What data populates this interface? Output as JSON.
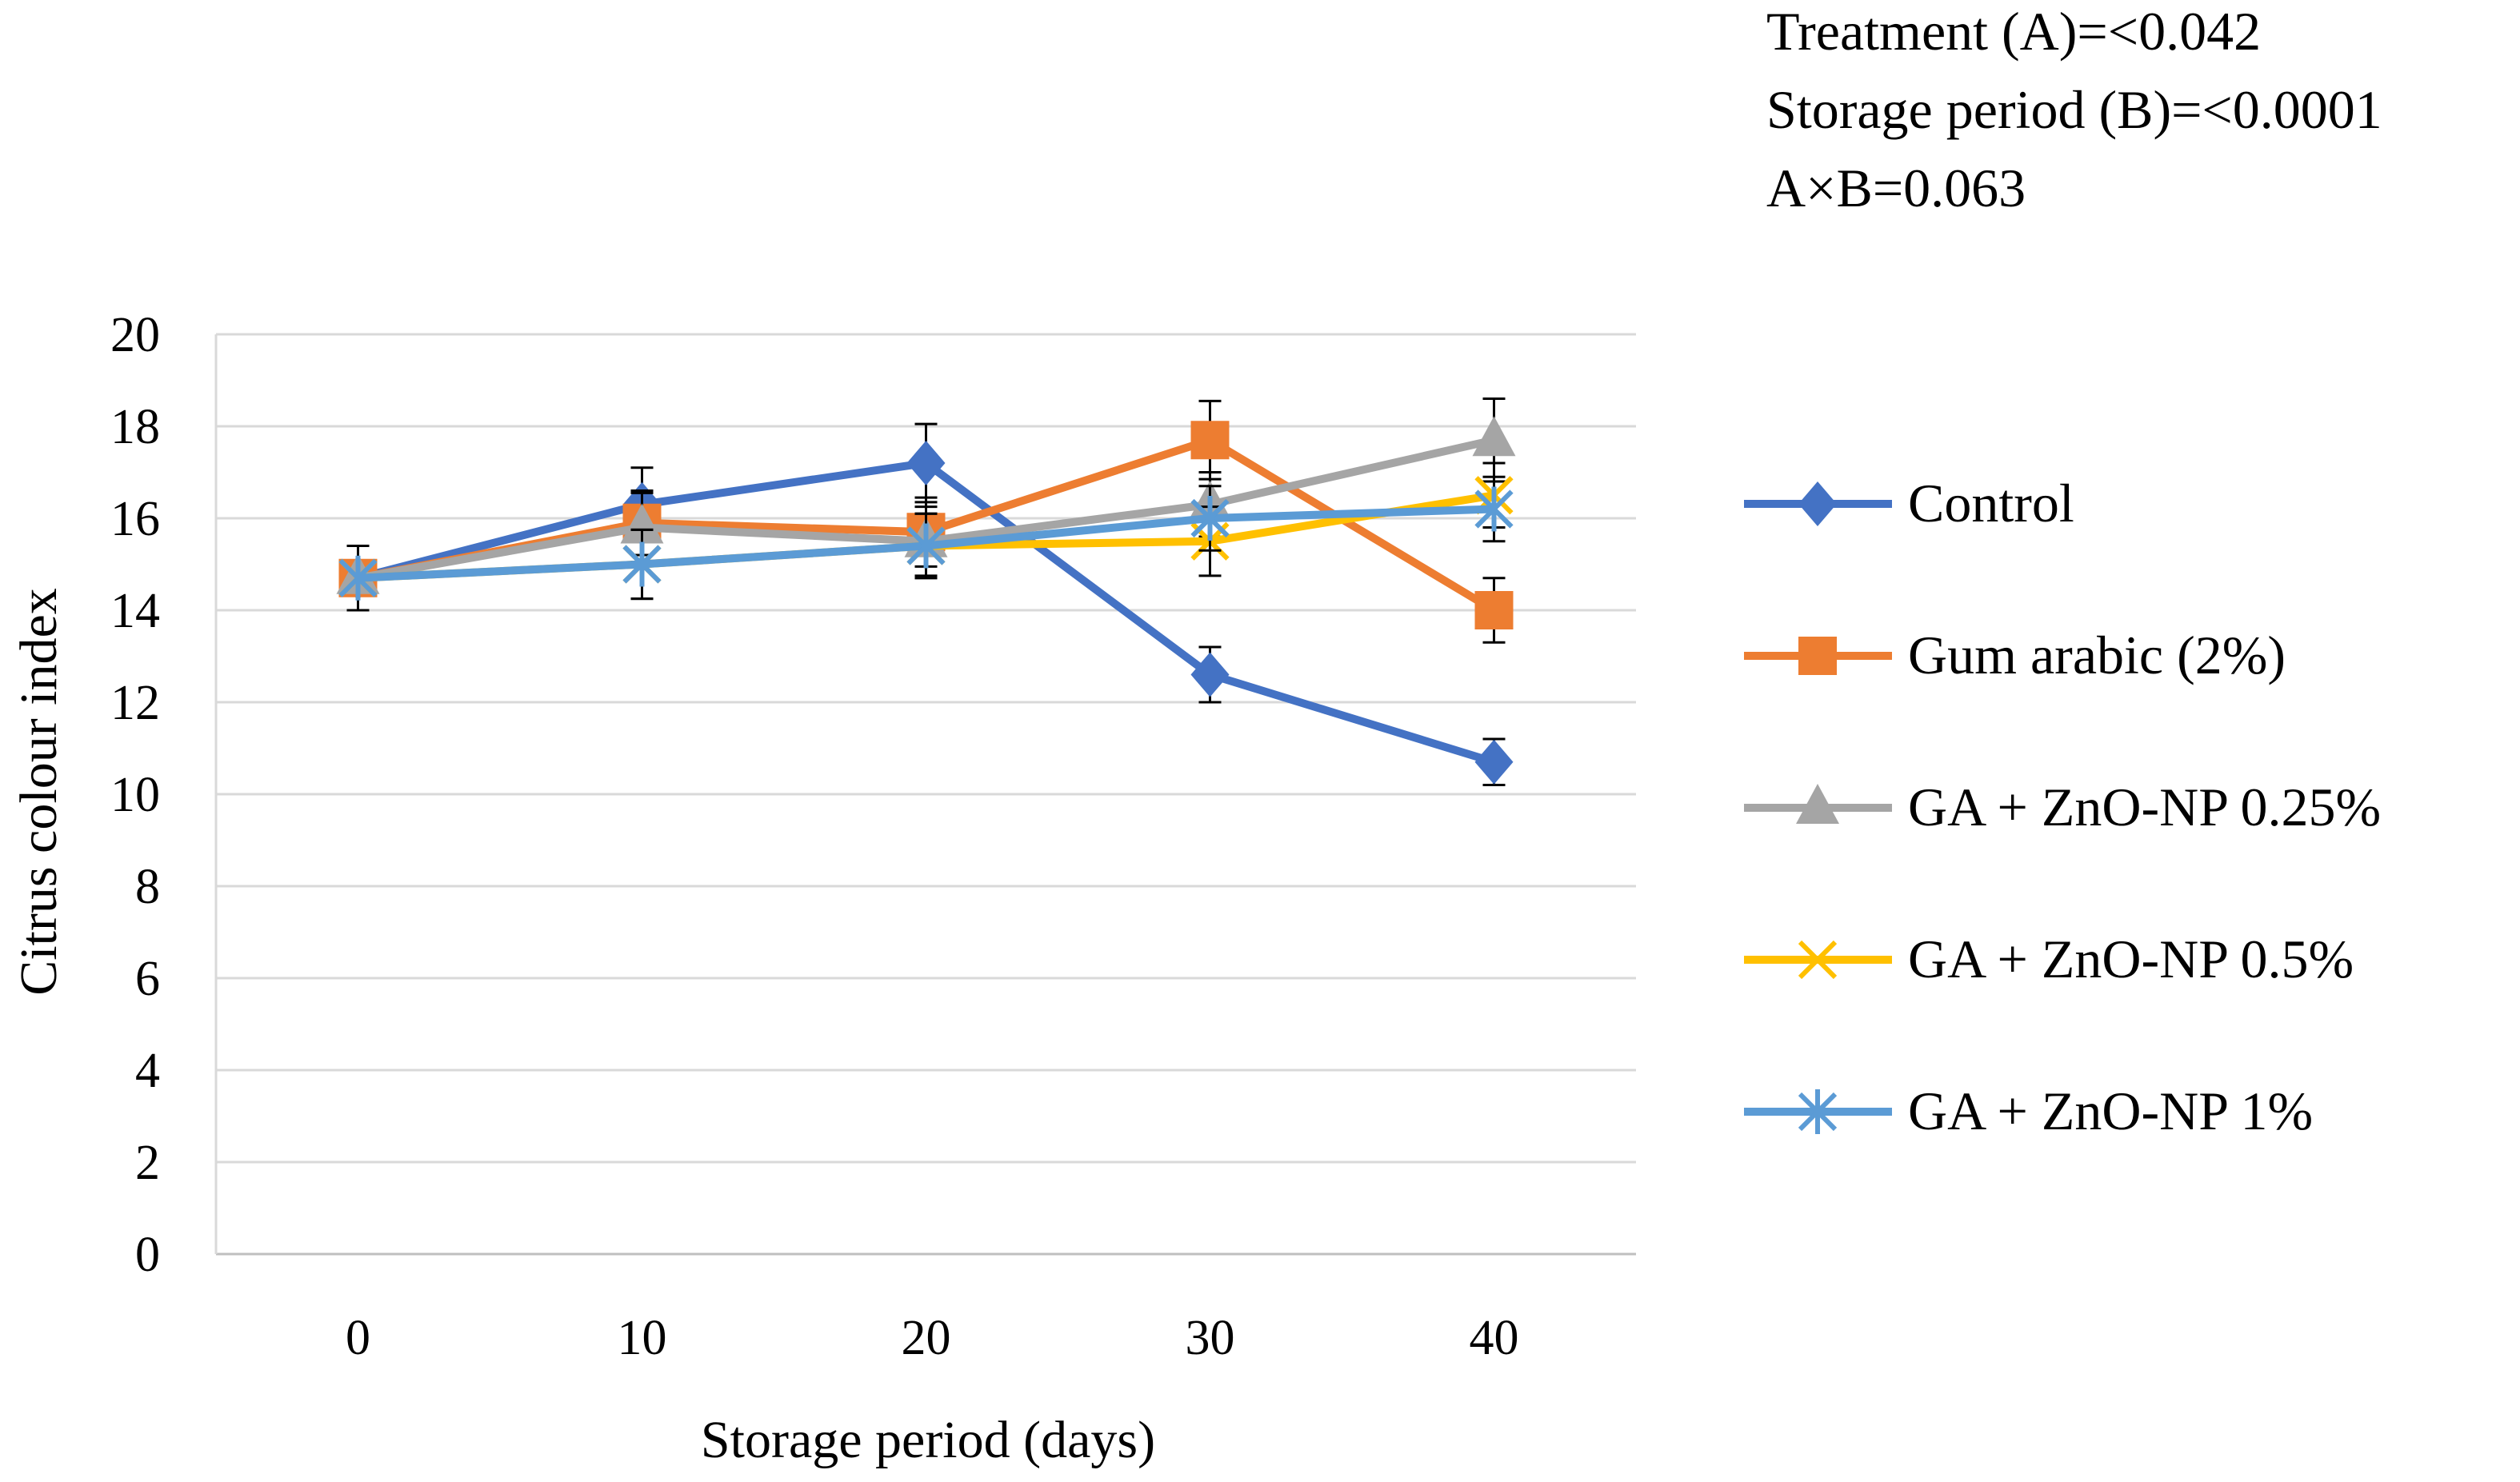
{
  "chart_data": {
    "type": "line",
    "title": "",
    "xlabel": "Storage period (days)",
    "ylabel": "Citrus colour index",
    "x": [
      0,
      10,
      20,
      30,
      40
    ],
    "xlim": [
      -5,
      45
    ],
    "ylim": [
      0,
      20
    ],
    "yticks": [
      0,
      2,
      4,
      6,
      8,
      10,
      12,
      14,
      16,
      18,
      20
    ],
    "grid": true,
    "legend_position": "right",
    "annotations": [
      "Treatment (A)=<0.042",
      "Storage period (B)=<0.0001",
      "A×B=0.063"
    ],
    "series": [
      {
        "name": "Control",
        "color": "#4472C4",
        "marker": "diamond",
        "values": [
          14.7,
          16.3,
          17.2,
          12.6,
          10.7
        ],
        "errors": [
          0.7,
          0.8,
          0.85,
          0.6,
          0.5
        ]
      },
      {
        "name": "Gum arabic (2%)",
        "color": "#ED7D31",
        "marker": "square",
        "values": [
          14.7,
          15.9,
          15.7,
          17.7,
          14.0
        ],
        "errors": [
          0.7,
          0.7,
          0.75,
          0.85,
          0.7
        ]
      },
      {
        "name": "GA + ZnO-NP 0.25%",
        "color": "#A5A5A5",
        "marker": "triangle",
        "values": [
          14.7,
          15.8,
          15.5,
          16.3,
          17.7
        ],
        "errors": [
          0.7,
          0.75,
          0.75,
          0.7,
          0.9
        ]
      },
      {
        "name": "GA + ZnO-NP 0.5%",
        "color": "#FFC000",
        "marker": "x",
        "values": [
          14.7,
          15.0,
          15.4,
          15.5,
          16.5
        ],
        "errors": [
          0.7,
          0.75,
          0.7,
          0.75,
          0.7
        ]
      },
      {
        "name": "GA + ZnO-NP 1%",
        "color": "#5B9BD5",
        "marker": "asterisk",
        "values": [
          14.7,
          15.0,
          15.4,
          16.0,
          16.2
        ],
        "errors": [
          0.7,
          0.75,
          0.7,
          0.7,
          0.7
        ]
      }
    ]
  }
}
